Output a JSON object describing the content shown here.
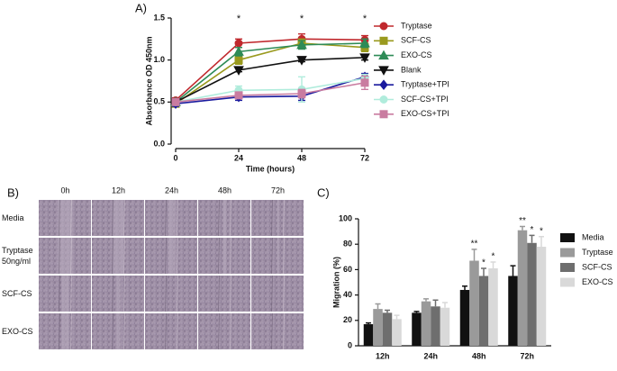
{
  "chart_data": [
    {
      "type": "line",
      "title": "A)",
      "ylabel": "Absorbance OD 450nm",
      "xlabel": "Time (hours)",
      "x": [
        0,
        24,
        48,
        72
      ],
      "xlim": [
        0,
        72
      ],
      "xticks": [
        0,
        24,
        48,
        72
      ],
      "ylim": [
        0,
        1.5
      ],
      "yticks": [
        {
          "value": 0,
          "label": "0.0"
        },
        {
          "value": 0.5,
          "label": "0.5"
        },
        {
          "value": 1,
          "label": "1.0"
        },
        {
          "value": 1.5,
          "label": "1.5"
        }
      ],
      "x_annotations": [
        null,
        "*",
        "*",
        "*"
      ],
      "series": [
        {
          "name": "Tryptase",
          "color": "#c0282d",
          "marker": "circle",
          "values": [
            0.52,
            1.2,
            1.25,
            1.24
          ],
          "errors": [
            0.03,
            0.05,
            0.06,
            0.05
          ]
        },
        {
          "name": "SCF-CS",
          "color": "#9a9a1e",
          "marker": "square",
          "values": [
            0.48,
            1.0,
            1.2,
            1.15
          ],
          "errors": [
            0.03,
            0.05,
            0.05,
            0.05
          ]
        },
        {
          "name": "EXO-CS",
          "color": "#2e8b57",
          "marker": "triangle",
          "values": [
            0.5,
            1.1,
            1.18,
            1.2
          ],
          "errors": [
            0.03,
            0.05,
            0.05,
            0.05
          ]
        },
        {
          "name": "Blank",
          "color": "#111111",
          "marker": "triangle-down",
          "values": [
            0.5,
            0.88,
            1.0,
            1.03
          ],
          "errors": [
            0.02,
            0.02,
            0.02,
            0.03
          ]
        },
        {
          "name": "Tryptase+TPI",
          "color": "#1a1a9e",
          "marker": "diamond",
          "values": [
            0.48,
            0.56,
            0.57,
            0.8
          ],
          "errors": [
            0.03,
            0.04,
            0.05,
            0.04
          ]
        },
        {
          "name": "SCF-CS+TPI",
          "color": "#b0ecdc",
          "marker": "circle",
          "values": [
            0.5,
            0.64,
            0.65,
            0.78
          ],
          "errors": [
            0.03,
            0.05,
            0.15,
            0.05
          ]
        },
        {
          "name": "EXO-CS+TPI",
          "color": "#c97ca0",
          "marker": "square",
          "values": [
            0.5,
            0.58,
            0.6,
            0.73
          ],
          "errors": [
            0.03,
            0.03,
            0.05,
            0.08
          ]
        }
      ]
    },
    {
      "type": "bar",
      "title": "C)",
      "ylabel": "Migration (%)",
      "categories": [
        "12h",
        "24h",
        "48h",
        "72h"
      ],
      "ylim": [
        0,
        100
      ],
      "yticks": [
        0,
        20,
        40,
        60,
        80,
        100
      ],
      "series": [
        {
          "name": "Media",
          "color": "#111111",
          "values": [
            17,
            26,
            44,
            55
          ],
          "errors": [
            1,
            1,
            3,
            8
          ],
          "stars": [
            null,
            null,
            null,
            null
          ]
        },
        {
          "name": "Tryptase",
          "color": "#9a9a9a",
          "values": [
            29,
            35,
            67,
            91
          ],
          "errors": [
            4,
            2,
            9,
            3
          ],
          "stars": [
            null,
            null,
            "**",
            "**"
          ]
        },
        {
          "name": "SCF-CS",
          "color": "#6e6e6e",
          "values": [
            26,
            31,
            55,
            81
          ],
          "errors": [
            2,
            5,
            6,
            6
          ],
          "stars": [
            null,
            null,
            "*",
            "*"
          ]
        },
        {
          "name": "EXO-CS",
          "color": "#d9d9d9",
          "values": [
            21,
            30,
            61,
            78
          ],
          "errors": [
            3,
            4,
            5,
            8
          ],
          "stars": [
            null,
            null,
            "*",
            "*"
          ]
        }
      ]
    }
  ],
  "image_grid": {
    "title": "B)",
    "columns": [
      "0h",
      "12h",
      "24h",
      "48h",
      "72h"
    ],
    "rows": [
      [
        "Media"
      ],
      [
        "Tryptase",
        "50ng/ml"
      ],
      [
        "SCF-CS"
      ],
      [
        "EXO-CS"
      ]
    ]
  }
}
